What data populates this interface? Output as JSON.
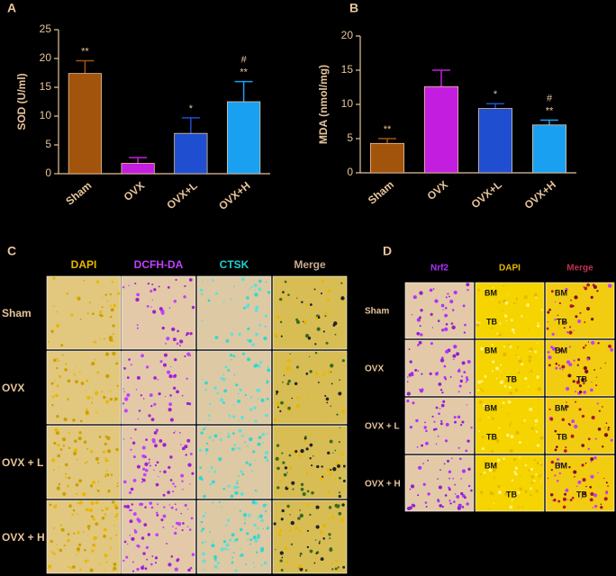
{
  "chart_data": [
    {
      "type": "bar",
      "panel": "A",
      "ylabel": "SOD (U/ml)",
      "categories": [
        "Sham",
        "OVX",
        "OVX+L",
        "OVX+H"
      ],
      "values": [
        17.4,
        1.8,
        7.0,
        12.5
      ],
      "errors": [
        2.2,
        1.0,
        2.7,
        3.5
      ],
      "colors": [
        "#a3540c",
        "#c31ee0",
        "#1f4fd0",
        "#1aa0f0"
      ],
      "annotations": [
        [
          "**"
        ],
        [],
        [
          "*"
        ],
        [
          "#",
          "**"
        ]
      ],
      "ylim": [
        0,
        25
      ],
      "yticks": [
        0,
        5,
        10,
        15,
        20,
        25
      ]
    },
    {
      "type": "bar",
      "panel": "B",
      "ylabel": "MDA (nmol/mg)",
      "categories": [
        "Sham",
        "OVX",
        "OVX+L",
        "OVX+H"
      ],
      "values": [
        4.3,
        12.6,
        9.4,
        7.0
      ],
      "errors": [
        0.7,
        2.4,
        0.7,
        0.7
      ],
      "colors": [
        "#a3540c",
        "#c31ee0",
        "#1f4fd0",
        "#1aa0f0"
      ],
      "annotations": [
        [
          "**"
        ],
        [],
        [
          "*"
        ],
        [
          "#",
          "**"
        ]
      ],
      "ylim": [
        0,
        20
      ],
      "yticks": [
        0,
        5,
        10,
        15,
        20
      ]
    }
  ],
  "panel_c": {
    "label": "C",
    "columns": [
      "DAPI",
      "DCFH-DA",
      "CTSK",
      "Merge"
    ],
    "column_colors": [
      "#e8b800",
      "#c040ff",
      "#20d0d0",
      "#c8a890"
    ],
    "rows": [
      "Sham",
      "OVX",
      "OVX + L",
      "OVX + H"
    ]
  },
  "panel_d": {
    "label": "D",
    "columns": [
      "Nrf2",
      "DAPI",
      "Merge"
    ],
    "column_colors": [
      "#b030ff",
      "#e8b800",
      "#c03050"
    ],
    "rows": [
      "Sham",
      "OVX",
      "OVX + L",
      "OVX + H"
    ],
    "tissue_labels": [
      "BM",
      "TB"
    ]
  }
}
